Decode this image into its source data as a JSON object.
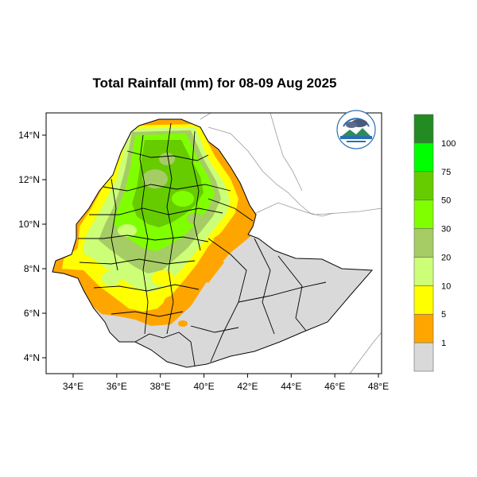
{
  "title": "Total Rainfall (mm) for 08-09 Aug 2025",
  "axes": {
    "x_ticks": [
      "34°E",
      "36°E",
      "38°E",
      "40°E",
      "42°E",
      "44°E",
      "46°E",
      "48°E"
    ],
    "y_ticks": [
      "14°N",
      "12°N",
      "10°N",
      "8°N",
      "6°N",
      "4°N"
    ],
    "lon_range": [
      32.8,
      48.2
    ],
    "lat_range": [
      3.2,
      15.0
    ]
  },
  "legend": {
    "levels": [
      "1",
      "5",
      "10",
      "20",
      "30",
      "50",
      "75",
      "100"
    ],
    "colors": [
      "#d9d9d9",
      "#ffa500",
      "#ffff00",
      "#ccff77",
      "#a6cc66",
      "#80ff00",
      "#66cc00",
      "#00ff00",
      "#228b22"
    ]
  },
  "logo": {
    "icon": "meteorology-agency-logo"
  },
  "colors": {
    "background": "#ffffff",
    "frame": "#000000",
    "border": "#555555",
    "coast": "#999999"
  }
}
